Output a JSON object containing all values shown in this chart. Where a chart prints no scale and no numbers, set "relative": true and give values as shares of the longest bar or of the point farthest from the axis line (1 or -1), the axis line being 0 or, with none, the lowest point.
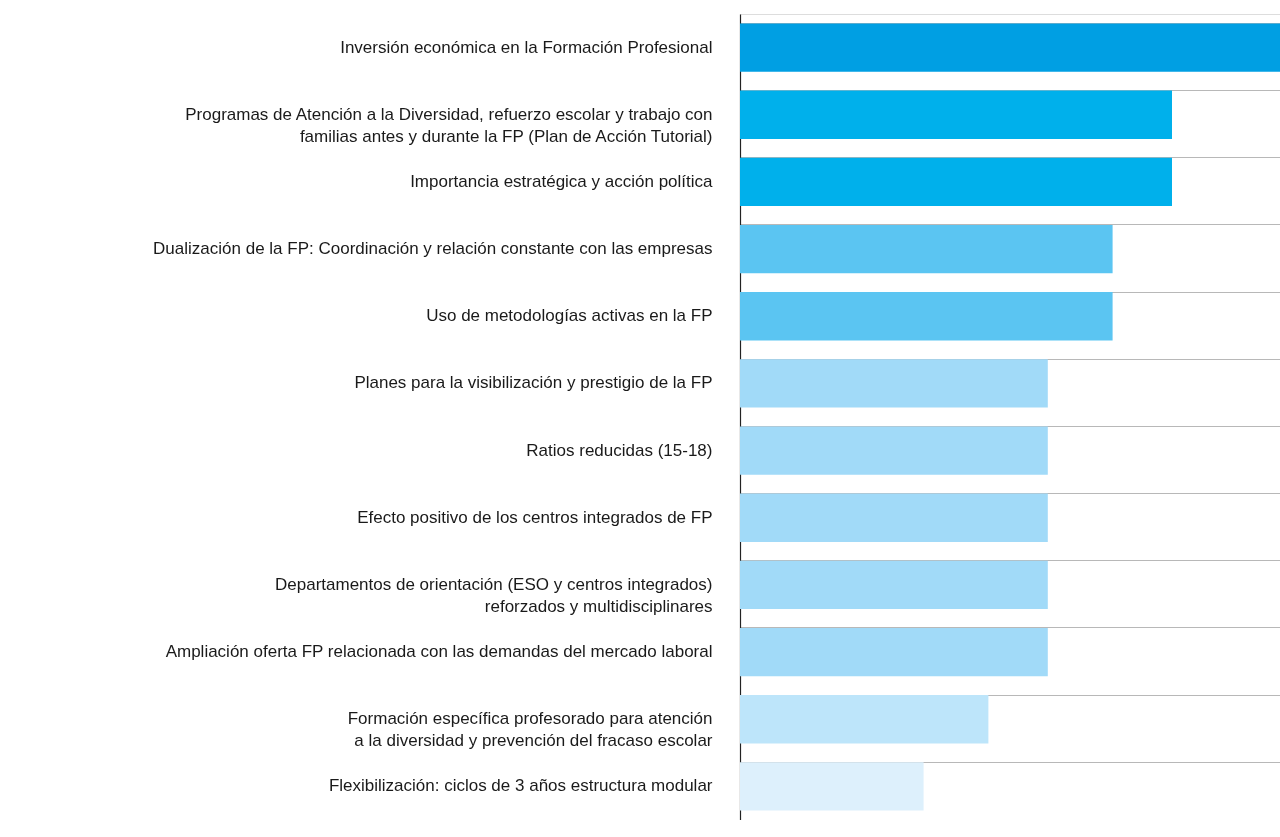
{
  "chart_data": {
    "type": "bar",
    "orientation": "horizontal",
    "relative": true,
    "grid": "y",
    "categories": [
      "Inversión económica en la Formación Profesional",
      "Programas de Atención a la Diversidad, refuerzo escolar y trabajo con\nfamilias antes y durante la FP (Plan de Acción Tutorial)",
      "Importancia estratégica y acción política",
      "Dualización de la FP: Coordinación y relación constante con las empresas",
      "Uso de metodologías activas en la FP",
      "Planes para la visibilización y prestigio de la FP",
      "Ratios reducidas (15-18)",
      "Efecto positivo de los centros integrados de FP",
      "Departamentos de orientación (ESO y centros integrados)\nreforzados y multidisciplinares",
      "Ampliación oferta FP relacionada con las demandas del mercado laboral",
      "Formación específica profesorado para atención\na la diversidad y prevención del fracaso escolar",
      "Flexibilización: ciclos de 3 años estructura modular"
    ],
    "values": [
      1,
      0.8,
      0.8,
      0.69,
      0.69,
      0.57,
      0.57,
      0.57,
      0.57,
      0.57,
      0.46,
      0.34
    ],
    "colors": [
      "#009fe3",
      "#00b0eb",
      "#00b0eb",
      "#5bc5f2",
      "#5bc5f2",
      "#a1daf8",
      "#a1daf8",
      "#a1daf8",
      "#a1daf8",
      "#a1daf8",
      "#bde5fa",
      "#ddf0fc"
    ]
  }
}
